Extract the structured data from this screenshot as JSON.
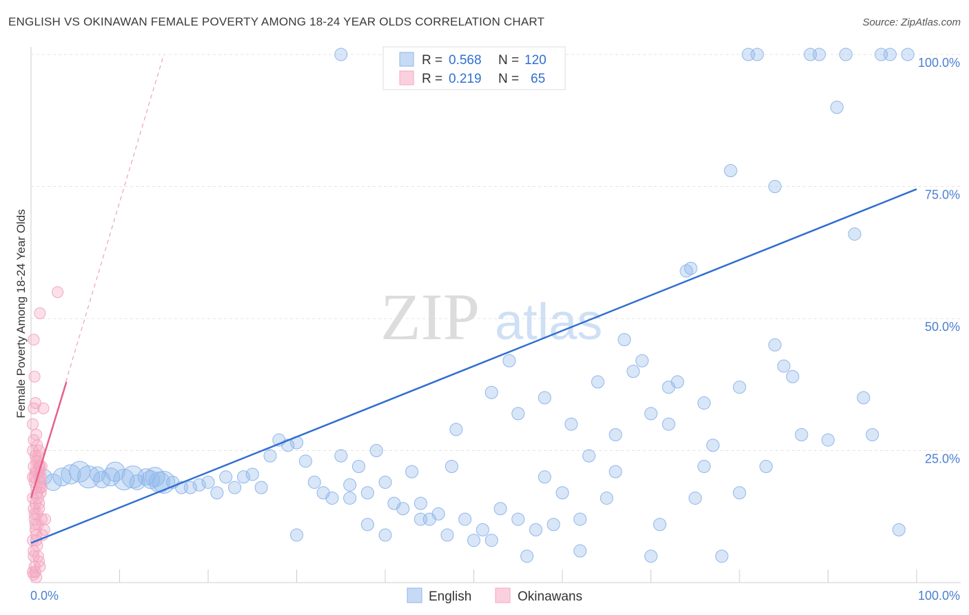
{
  "header": {
    "title": "ENGLISH VS OKINAWAN FEMALE POVERTY AMONG 18-24 YEAR OLDS CORRELATION CHART",
    "source": "Source: ZipAtlas.com"
  },
  "watermark": {
    "zip": "ZIP",
    "atlas": "atlas"
  },
  "chart_data": {
    "type": "scatter",
    "title": "ENGLISH VS OKINAWAN FEMALE POVERTY AMONG 18-24 YEAR OLDS CORRELATION CHART",
    "xlabel": "",
    "ylabel": "Female Poverty Among 18-24 Year Olds",
    "xlim": [
      0,
      100
    ],
    "ylim": [
      0,
      100
    ],
    "x_tick_labels": [
      "0.0%",
      "100.0%"
    ],
    "y_ticks": [
      25,
      50,
      75,
      100
    ],
    "y_tick_labels": [
      "25.0%",
      "50.0%",
      "75.0%",
      "100.0%"
    ],
    "grid": true,
    "legend_position": "top-center",
    "stats": [
      {
        "r_label": "R =",
        "r_value": "0.568",
        "n_label": "N =",
        "n_value": "120"
      },
      {
        "r_label": "R =",
        "r_value": "0.219",
        "n_label": "N =",
        "n_value": "65"
      }
    ],
    "series": [
      {
        "name": "English",
        "color": "#8fb6ea",
        "trend_color": "#2f6fd0",
        "trend": {
          "x": [
            0,
            100
          ],
          "y": [
            7.5,
            74.5
          ]
        },
        "points": [
          [
            1.5,
            20
          ],
          [
            2.5,
            19
          ],
          [
            3.5,
            20
          ],
          [
            4.5,
            20.5
          ],
          [
            5.5,
            21
          ],
          [
            6.5,
            20
          ],
          [
            7.5,
            20.5
          ],
          [
            8,
            19.5
          ],
          [
            9,
            20
          ],
          [
            9.5,
            21
          ],
          [
            10.5,
            19.5
          ],
          [
            11.5,
            20
          ],
          [
            12,
            19
          ],
          [
            13,
            20
          ],
          [
            13.5,
            19.5
          ],
          [
            14,
            20
          ],
          [
            14.5,
            19
          ],
          [
            15,
            19
          ],
          [
            16,
            19
          ],
          [
            17,
            18
          ],
          [
            18,
            18
          ],
          [
            19,
            18.5
          ],
          [
            20,
            19
          ],
          [
            21,
            17
          ],
          [
            22,
            20
          ],
          [
            23,
            18
          ],
          [
            24,
            20
          ],
          [
            25,
            20.5
          ],
          [
            26,
            18
          ],
          [
            27,
            24
          ],
          [
            28,
            27
          ],
          [
            29,
            26
          ],
          [
            30,
            26.5
          ],
          [
            31,
            23
          ],
          [
            32,
            19
          ],
          [
            33,
            17
          ],
          [
            34,
            16
          ],
          [
            35,
            24
          ],
          [
            36,
            18.5
          ],
          [
            37,
            22
          ],
          [
            38,
            17
          ],
          [
            39,
            25
          ],
          [
            40,
            19
          ],
          [
            41,
            15
          ],
          [
            42,
            14
          ],
          [
            43,
            21
          ],
          [
            44,
            15
          ],
          [
            45,
            12
          ],
          [
            46,
            13
          ],
          [
            47,
            9
          ],
          [
            47.5,
            22
          ],
          [
            48,
            29
          ],
          [
            49,
            12
          ],
          [
            50,
            8
          ],
          [
            51,
            10
          ],
          [
            52,
            8
          ],
          [
            53,
            14
          ],
          [
            54,
            42
          ],
          [
            55,
            32
          ],
          [
            56,
            5
          ],
          [
            57,
            10
          ],
          [
            58,
            35
          ],
          [
            59,
            11
          ],
          [
            60,
            17
          ],
          [
            61,
            30
          ],
          [
            62,
            12
          ],
          [
            63,
            24
          ],
          [
            64,
            38
          ],
          [
            65,
            16
          ],
          [
            66,
            21
          ],
          [
            67,
            46
          ],
          [
            68,
            40
          ],
          [
            69,
            42
          ],
          [
            70,
            5
          ],
          [
            71,
            11
          ],
          [
            72,
            37
          ],
          [
            73,
            38
          ],
          [
            74,
            59
          ],
          [
            74.5,
            59.5
          ],
          [
            75,
            16
          ],
          [
            76,
            22
          ],
          [
            77,
            26
          ],
          [
            78,
            5
          ],
          [
            79,
            78
          ],
          [
            80,
            17
          ],
          [
            81,
            100
          ],
          [
            82,
            100
          ],
          [
            83,
            22
          ],
          [
            84,
            75
          ],
          [
            85,
            41
          ],
          [
            86,
            39
          ],
          [
            87,
            28
          ],
          [
            88,
            100
          ],
          [
            89,
            100
          ],
          [
            90,
            27
          ],
          [
            91,
            90
          ],
          [
            92,
            100
          ],
          [
            93,
            66
          ],
          [
            94,
            35
          ],
          [
            95,
            28
          ],
          [
            96,
            100
          ],
          [
            97,
            100
          ],
          [
            98,
            10
          ],
          [
            99,
            100
          ],
          [
            36,
            16
          ],
          [
            38,
            11
          ],
          [
            40,
            9
          ],
          [
            52,
            36
          ],
          [
            62,
            6
          ],
          [
            35,
            100
          ],
          [
            30,
            9
          ],
          [
            55,
            12
          ],
          [
            44,
            12
          ],
          [
            58,
            20
          ],
          [
            66,
            28
          ],
          [
            70,
            32
          ],
          [
            72,
            30
          ],
          [
            76,
            34
          ],
          [
            80,
            37
          ],
          [
            84,
            45
          ]
        ]
      },
      {
        "name": "Okinawans",
        "color": "#f4a6bf",
        "trend_color": "#e8608a",
        "trend": {
          "x": [
            0,
            4
          ],
          "y": [
            16,
            38
          ]
        },
        "trend_extension": {
          "x": [
            0,
            15
          ],
          "y": [
            16,
            100
          ]
        },
        "points": [
          [
            0.2,
            25
          ],
          [
            0.3,
            22
          ],
          [
            0.4,
            20
          ],
          [
            0.5,
            24
          ],
          [
            0.3,
            27
          ],
          [
            0.6,
            18
          ],
          [
            0.5,
            15
          ],
          [
            0.4,
            12
          ],
          [
            0.5,
            10
          ],
          [
            0.6,
            8
          ],
          [
            0.3,
            5
          ],
          [
            0.4,
            3
          ],
          [
            0.5,
            2
          ],
          [
            0.6,
            1
          ],
          [
            0.3,
            33
          ],
          [
            0.5,
            34
          ],
          [
            0.4,
            39
          ],
          [
            0.3,
            46
          ],
          [
            1,
            51
          ],
          [
            3,
            55
          ],
          [
            0.7,
            21
          ],
          [
            0.8,
            23
          ],
          [
            0.9,
            20
          ],
          [
            1,
            22
          ],
          [
            1.1,
            19
          ],
          [
            0.7,
            17
          ],
          [
            0.8,
            16
          ],
          [
            0.9,
            14
          ],
          [
            1.2,
            12
          ],
          [
            1.3,
            9
          ],
          [
            1.4,
            33
          ],
          [
            0.2,
            30
          ],
          [
            0.6,
            28
          ],
          [
            0.7,
            26
          ],
          [
            0.8,
            24
          ],
          [
            0.9,
            22
          ],
          [
            1.0,
            21
          ],
          [
            1.1,
            20
          ],
          [
            1.2,
            18
          ],
          [
            0.2,
            16
          ],
          [
            0.3,
            14
          ],
          [
            0.4,
            13
          ],
          [
            0.5,
            11
          ],
          [
            0.6,
            9
          ],
          [
            0.7,
            7
          ],
          [
            0.8,
            5
          ],
          [
            0.9,
            4
          ],
          [
            1.0,
            3
          ],
          [
            0.2,
            2
          ],
          [
            0.3,
            1.5
          ],
          [
            1.5,
            10
          ],
          [
            1.6,
            12
          ],
          [
            0.4,
            19
          ],
          [
            0.5,
            21
          ],
          [
            0.6,
            23
          ],
          [
            0.2,
            20
          ],
          [
            0.9,
            25
          ],
          [
            1.0,
            18
          ],
          [
            0.8,
            11
          ],
          [
            0.7,
            13
          ],
          [
            0.9,
            15
          ],
          [
            1.1,
            17
          ],
          [
            0.2,
            8
          ],
          [
            0.3,
            6
          ],
          [
            1.2,
            22
          ]
        ]
      }
    ]
  },
  "bottom_legend": [
    {
      "label": "English",
      "color": "#8fb6ea"
    },
    {
      "label": "Okinawans",
      "color": "#f4a6bf"
    }
  ]
}
